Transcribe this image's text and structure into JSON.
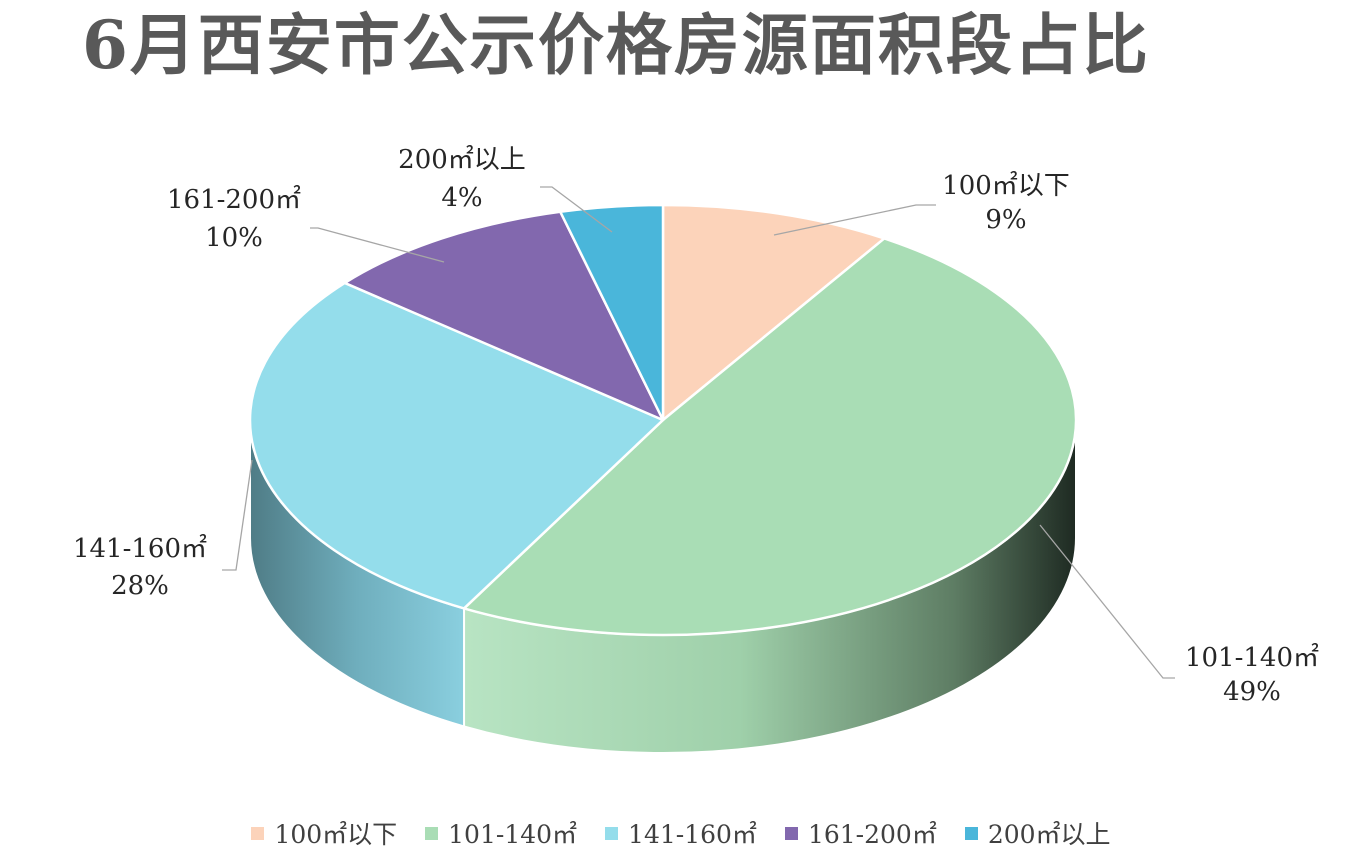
{
  "chart_data": {
    "type": "pie",
    "title": "6月西安市公示价格房源面积段占比",
    "categories": [
      "100㎡以下",
      "101-140㎡",
      "141-160㎡",
      "161-200㎡",
      "200㎡以上"
    ],
    "values": [
      9,
      49,
      28,
      10,
      4
    ],
    "value_labels": [
      "9%",
      "49%",
      "28%",
      "10%",
      "4%"
    ],
    "colors": [
      "#FCD3BA",
      "#A9DDB5",
      "#94DDEB",
      "#8268AE",
      "#4AB6DA"
    ],
    "legend_position": "bottom",
    "three_d": true
  }
}
